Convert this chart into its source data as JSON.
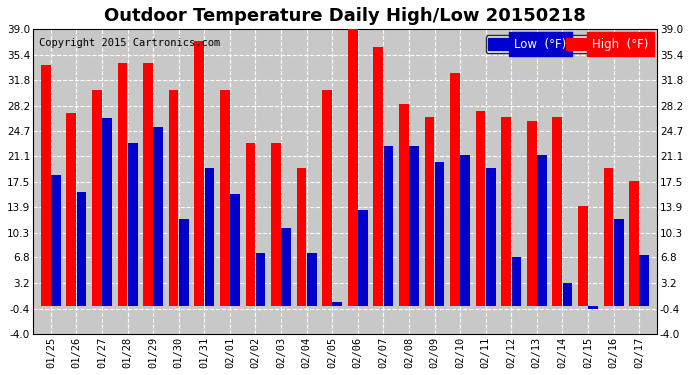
{
  "title": "Outdoor Temperature Daily High/Low 20150218",
  "copyright": "Copyright 2015 Cartronics.com",
  "legend_low": "Low  (°F)",
  "legend_high": "High  (°F)",
  "categories": [
    "01/25",
    "01/26",
    "01/27",
    "01/28",
    "01/29",
    "01/30",
    "01/31",
    "02/01",
    "02/02",
    "02/03",
    "02/04",
    "02/05",
    "02/06",
    "02/07",
    "02/08",
    "02/09",
    "02/10",
    "02/11",
    "02/12",
    "02/13",
    "02/14",
    "02/15",
    "02/16",
    "02/17"
  ],
  "high_values": [
    34.0,
    27.2,
    30.4,
    34.3,
    34.3,
    30.4,
    37.4,
    30.4,
    23.0,
    23.0,
    19.4,
    30.4,
    39.2,
    36.5,
    28.4,
    26.6,
    32.9,
    27.5,
    26.6,
    26.1,
    26.6,
    14.0,
    19.4,
    17.6
  ],
  "low_values": [
    18.5,
    16.0,
    26.5,
    23.0,
    25.2,
    12.2,
    19.4,
    15.8,
    7.4,
    11.0,
    7.4,
    0.5,
    13.5,
    22.5,
    22.5,
    20.3,
    21.2,
    19.4,
    6.8,
    21.2,
    3.2,
    -0.4,
    12.2,
    7.2
  ],
  "bar_high_color": "#FF0000",
  "bar_low_color": "#0000CC",
  "background_color": "#C8C8C8",
  "outer_bg_color": "#FFFFFF",
  "grid_color": "#FFFFFF",
  "ylim_min": -4.0,
  "ylim_max": 39.0,
  "yticks": [
    -4.0,
    -0.4,
    3.2,
    6.8,
    10.3,
    13.9,
    17.5,
    21.1,
    24.7,
    28.2,
    31.8,
    35.4,
    39.0
  ],
  "title_fontsize": 13,
  "copyright_fontsize": 7.5,
  "tick_fontsize": 7.5,
  "legend_fontsize": 8.5,
  "bar_width": 0.38,
  "bar_gap": 0.02
}
